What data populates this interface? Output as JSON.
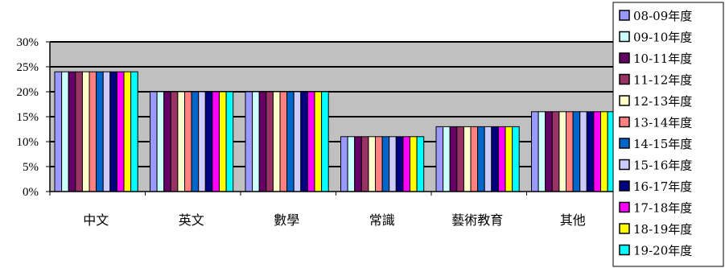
{
  "chart_data": {
    "type": "bar",
    "categories": [
      "中文",
      "英文",
      "數學",
      "常識",
      "藝術教育",
      "其他"
    ],
    "y_ticks": [
      "0%",
      "5%",
      "10%",
      "15%",
      "20%",
      "25%",
      "30%"
    ],
    "ylim": [
      0,
      30
    ],
    "grid": true,
    "legend_position": "right",
    "series": [
      {
        "name": "08-09年度",
        "color": "#9999ff",
        "values": [
          24,
          20,
          20,
          11,
          13,
          16
        ]
      },
      {
        "name": "09-10年度",
        "color": "#ccffff",
        "values": [
          24,
          20,
          20,
          11,
          13,
          16
        ]
      },
      {
        "name": "10-11年度",
        "color": "#660066",
        "values": [
          24,
          20,
          20,
          11,
          13,
          16
        ]
      },
      {
        "name": "11-12年度",
        "color": "#993366",
        "values": [
          24,
          20,
          20,
          11,
          13,
          16
        ]
      },
      {
        "name": "12-13年度",
        "color": "#ffffcc",
        "values": [
          24,
          20,
          20,
          11,
          13,
          16
        ]
      },
      {
        "name": "13-14年度",
        "color": "#ff8080",
        "values": [
          24,
          20,
          20,
          11,
          13,
          16
        ]
      },
      {
        "name": "14-15年度",
        "color": "#0066cc",
        "values": [
          24,
          20,
          20,
          11,
          13,
          16
        ]
      },
      {
        "name": "15-16年度",
        "color": "#ccccff",
        "values": [
          24,
          20,
          20,
          11,
          13,
          16
        ]
      },
      {
        "name": "16-17年度",
        "color": "#000080",
        "values": [
          24,
          20,
          20,
          11,
          13,
          16
        ]
      },
      {
        "name": "17-18年度",
        "color": "#ff00ff",
        "values": [
          24,
          20,
          20,
          11,
          13,
          16
        ]
      },
      {
        "name": "18-19年度",
        "color": "#ffff00",
        "values": [
          24,
          20,
          20,
          11,
          13,
          16
        ]
      },
      {
        "name": "19-20年度",
        "color": "#00ffff",
        "values": [
          24,
          20,
          20,
          11,
          13,
          16
        ]
      }
    ],
    "plot_background": "#c0c0c0"
  }
}
